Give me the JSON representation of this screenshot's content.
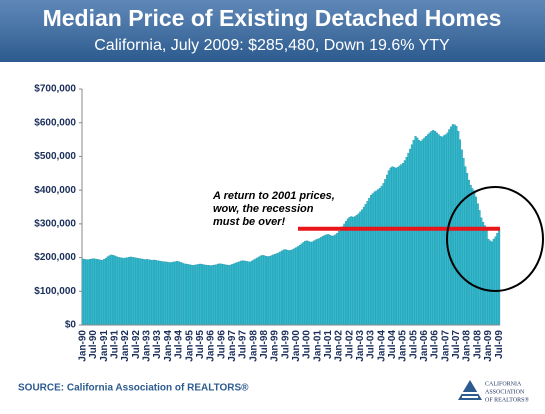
{
  "chart_data": {
    "type": "bar",
    "title": "Median Price of Existing Detached Homes",
    "subtitle": "California, July 2009: $285,480, Down 19.6% YTY",
    "source": "SOURCE: California Association of REALTORS®",
    "logo": [
      "CALIFORNIA",
      "ASSOCIATION",
      "OF REALTORS®"
    ],
    "annotation": [
      "A return to 2001 prices,",
      "wow, the recession",
      "must be over!"
    ],
    "color": "#33b8cc",
    "ylim": [
      0,
      700000
    ],
    "yticks": [
      {
        "value": 0,
        "label": "$0"
      },
      {
        "value": 100000,
        "label": "$100,000"
      },
      {
        "value": 200000,
        "label": "$200,000"
      },
      {
        "value": 300000,
        "label": "$300,000"
      },
      {
        "value": 400000,
        "label": "$400,000"
      },
      {
        "value": 500000,
        "label": "$500,000"
      },
      {
        "value": 600000,
        "label": "$600,000"
      },
      {
        "value": 700000,
        "label": "$700,000"
      }
    ],
    "categories": [
      "Jan-90",
      null,
      null,
      null,
      null,
      null,
      "Jul-90",
      null,
      null,
      null,
      null,
      null,
      "Jan-91",
      null,
      null,
      null,
      null,
      null,
      "Jul-91",
      null,
      null,
      null,
      null,
      null,
      "Jan-92",
      null,
      null,
      null,
      null,
      null,
      "Jul-92",
      null,
      null,
      null,
      null,
      null,
      "Jan-93",
      null,
      null,
      null,
      null,
      null,
      "Jul-93",
      null,
      null,
      null,
      null,
      null,
      "Jan-94",
      null,
      null,
      null,
      null,
      null,
      "Jul-94",
      null,
      null,
      null,
      null,
      null,
      "Jan-95",
      null,
      null,
      null,
      null,
      null,
      "Jul-95",
      null,
      null,
      null,
      null,
      null,
      "Jan-96",
      null,
      null,
      null,
      null,
      null,
      "Jul-96",
      null,
      null,
      null,
      null,
      null,
      "Jan-97",
      null,
      null,
      null,
      null,
      null,
      "Jul-97",
      null,
      null,
      null,
      null,
      null,
      "Jan-98",
      null,
      null,
      null,
      null,
      null,
      "Jul-98",
      null,
      null,
      null,
      null,
      null,
      "Jan-99",
      null,
      null,
      null,
      null,
      null,
      "Jul-99",
      null,
      null,
      null,
      null,
      null,
      "Jan-00",
      null,
      null,
      null,
      null,
      null,
      "Jul-00",
      null,
      null,
      null,
      null,
      null,
      "Jan-01",
      null,
      null,
      null,
      null,
      null,
      "Jul-01",
      null,
      null,
      null,
      null,
      null,
      "Jan-02",
      null,
      null,
      null,
      null,
      null,
      "Jul-02",
      null,
      null,
      null,
      null,
      null,
      "Jan-03",
      null,
      null,
      null,
      null,
      null,
      "Jul-03",
      null,
      null,
      null,
      null,
      null,
      "Jan-04",
      null,
      null,
      null,
      null,
      null,
      "Jul-04",
      null,
      null,
      null,
      null,
      null,
      "Jan-05",
      null,
      null,
      null,
      null,
      null,
      "Jul-05",
      null,
      null,
      null,
      null,
      null,
      "Jan-06",
      null,
      null,
      null,
      null,
      null,
      "Jul-06",
      null,
      null,
      null,
      null,
      null,
      "Jan-07",
      null,
      null,
      null,
      null,
      null,
      "Jul-07",
      null,
      null,
      null,
      null,
      null,
      "Jan-08",
      null,
      null,
      null,
      null,
      null,
      "Jul-08",
      null,
      null,
      null,
      null,
      null,
      "Jan-09",
      null,
      null,
      null,
      null,
      null,
      "Jul-09"
    ],
    "values": [
      196000,
      195000,
      194000,
      194000,
      195000,
      196000,
      197000,
      196000,
      195000,
      194000,
      193000,
      192000,
      195000,
      198000,
      203000,
      206000,
      208000,
      207000,
      205000,
      203000,
      201000,
      200000,
      199000,
      198000,
      199000,
      200000,
      201000,
      202000,
      201000,
      200000,
      199000,
      198000,
      197000,
      196000,
      195000,
      194000,
      195000,
      194000,
      193000,
      192000,
      193000,
      192000,
      191000,
      190000,
      189000,
      188000,
      188000,
      187000,
      186000,
      185000,
      186000,
      187000,
      188000,
      189000,
      188000,
      186000,
      184000,
      182000,
      181000,
      180000,
      179000,
      178000,
      177000,
      178000,
      179000,
      180000,
      181000,
      180000,
      179000,
      178000,
      177000,
      177000,
      176000,
      177000,
      178000,
      179000,
      181000,
      182000,
      181000,
      180000,
      179000,
      178000,
      177000,
      178000,
      180000,
      182000,
      184000,
      186000,
      188000,
      190000,
      191000,
      190000,
      189000,
      188000,
      187000,
      190000,
      193000,
      196000,
      199000,
      202000,
      205000,
      207000,
      206000,
      204000,
      203000,
      204000,
      206000,
      208000,
      210000,
      212000,
      214000,
      217000,
      220000,
      223000,
      224000,
      222000,
      221000,
      222000,
      224000,
      227000,
      230000,
      233000,
      237000,
      241000,
      245000,
      249000,
      250000,
      248000,
      246000,
      247000,
      250000,
      253000,
      255000,
      257000,
      260000,
      263000,
      266000,
      268000,
      269000,
      266000,
      264000,
      265000,
      268000,
      272000,
      278000,
      285000,
      292000,
      300000,
      308000,
      315000,
      320000,
      322000,
      320000,
      322000,
      326000,
      330000,
      336000,
      342000,
      350000,
      358000,
      367000,
      376000,
      385000,
      390000,
      395000,
      398000,
      402000,
      406000,
      412000,
      420000,
      432000,
      445000,
      458000,
      466000,
      470000,
      468000,
      465000,
      468000,
      472000,
      476000,
      480000,
      488000,
      498000,
      510000,
      522000,
      535000,
      548000,
      560000,
      555000,
      548000,
      545000,
      550000,
      555000,
      560000,
      565000,
      570000,
      575000,
      578000,
      575000,
      570000,
      565000,
      560000,
      558000,
      562000,
      565000,
      570000,
      580000,
      588000,
      595000,
      594000,
      590000,
      575000,
      550000,
      520000,
      495000,
      470000,
      450000,
      430000,
      415000,
      405000,
      398000,
      380000,
      360000,
      340000,
      318000,
      305000,
      295000,
      280000,
      255000,
      250000,
      247000,
      255000,
      262000,
      272000,
      285480
    ]
  }
}
